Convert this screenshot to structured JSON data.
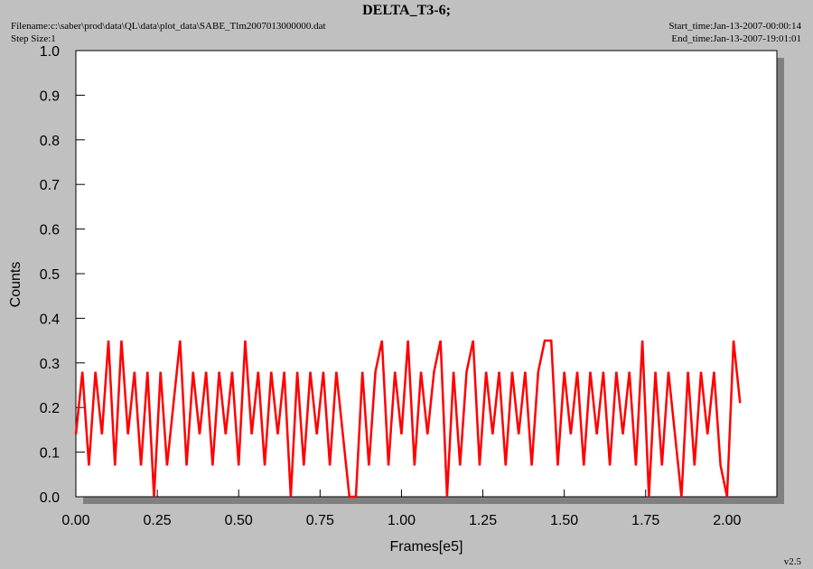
{
  "chart_data": {
    "type": "line",
    "title": "DELTA_T3-6;",
    "filename": "Filename:c:\\saber\\prod\\data\\QL\\data\\plot_data\\SABE_Tlm2007013000000.dat",
    "step_size": "Step Size:1",
    "start_time": "Start_time:Jan-13-2007-00:00:14",
    "end_time": "End_time:Jan-13-2007-19:01:01",
    "version": "v2.5",
    "xlabel": "Frames[e5]",
    "ylabel": "Counts",
    "xlim": [
      0,
      2.153
    ],
    "ylim": [
      0,
      1.0
    ],
    "xticks": [
      {
        "value": 0,
        "label": "0.00"
      },
      {
        "value": 0.25,
        "label": "0.25"
      },
      {
        "value": 0.5,
        "label": "0.50"
      },
      {
        "value": 0.75,
        "label": "0.75"
      },
      {
        "value": 1,
        "label": "1.00"
      },
      {
        "value": 1.25,
        "label": "1.25"
      },
      {
        "value": 1.5,
        "label": "1.50"
      },
      {
        "value": 1.75,
        "label": "1.75"
      },
      {
        "value": 2,
        "label": "2.00"
      }
    ],
    "yticks": [
      {
        "value": 0,
        "label": "0.0"
      },
      0.1,
      0.2,
      0.3,
      0.4,
      0.5,
      0.6,
      0.7,
      0.8,
      0.9,
      {
        "value": 1,
        "label": "1.0"
      }
    ],
    "x": [
      0,
      0.02,
      0.04,
      0.06,
      0.08,
      0.1,
      0.12,
      0.14,
      0.16,
      0.18,
      0.2,
      0.22,
      0.24,
      0.26,
      0.28,
      0.3,
      0.32,
      0.34,
      0.36,
      0.38,
      0.4,
      0.42,
      0.44,
      0.46,
      0.48,
      0.5,
      0.52,
      0.54,
      0.56,
      0.58,
      0.6,
      0.62,
      0.64,
      0.66,
      0.68,
      0.7,
      0.72,
      0.74,
      0.76,
      0.78,
      0.8,
      0.82,
      0.84,
      0.86,
      0.88,
      0.9,
      0.92,
      0.94,
      0.96,
      0.98,
      1,
      1.02,
      1.04,
      1.06,
      1.08,
      1.1,
      1.12,
      1.14,
      1.16,
      1.18,
      1.2,
      1.22,
      1.24,
      1.26,
      1.28,
      1.3,
      1.32,
      1.34,
      1.36,
      1.38,
      1.4,
      1.42,
      1.44,
      1.46,
      1.48,
      1.5,
      1.52,
      1.54,
      1.56,
      1.58,
      1.6,
      1.62,
      1.64,
      1.66,
      1.68,
      1.7,
      1.72,
      1.74,
      1.76,
      1.78,
      1.8,
      1.82,
      1.84,
      1.86,
      1.88,
      1.9,
      1.92,
      1.94,
      1.96,
      1.98,
      2,
      2.02,
      2.04
    ],
    "series": [
      {
        "color": "#ff0000",
        "values": [
          0.14,
          0.28,
          0.07,
          0.28,
          0.14,
          0.35,
          0.07,
          0.35,
          0.14,
          0.28,
          0.07,
          0.28,
          0,
          0.28,
          0.07,
          0.21,
          0.35,
          0.07,
          0.28,
          0.14,
          0.28,
          0.07,
          0.28,
          0.14,
          0.28,
          0.07,
          0.35,
          0.14,
          0.28,
          0.07,
          0.28,
          0.14,
          0.28,
          0,
          0.28,
          0.07,
          0.28,
          0.14,
          0.28,
          0.07,
          0.28,
          0.14,
          0,
          0,
          0.28,
          0.07,
          0.28,
          0.35,
          0.07,
          0.28,
          0.14,
          0.35,
          0.07,
          0.28,
          0.14,
          0.28,
          0.35,
          0,
          0.28,
          0.07,
          0.28,
          0.35,
          0.07,
          0.28,
          0.14,
          0.28,
          0.07,
          0.28,
          0.14,
          0.28,
          0.07,
          0.28,
          0.35,
          0.35,
          0.07,
          0.28,
          0.14,
          0.28,
          0.07,
          0.28,
          0.14,
          0.28,
          0.07,
          0.28,
          0.14,
          0.28,
          0.07,
          0.35,
          0,
          0.28,
          0.07,
          0.28,
          0.14,
          0,
          0.28,
          0.07,
          0.28,
          0.14,
          0.28,
          0.07,
          0,
          0.35,
          0.21
        ]
      }
    ]
  }
}
